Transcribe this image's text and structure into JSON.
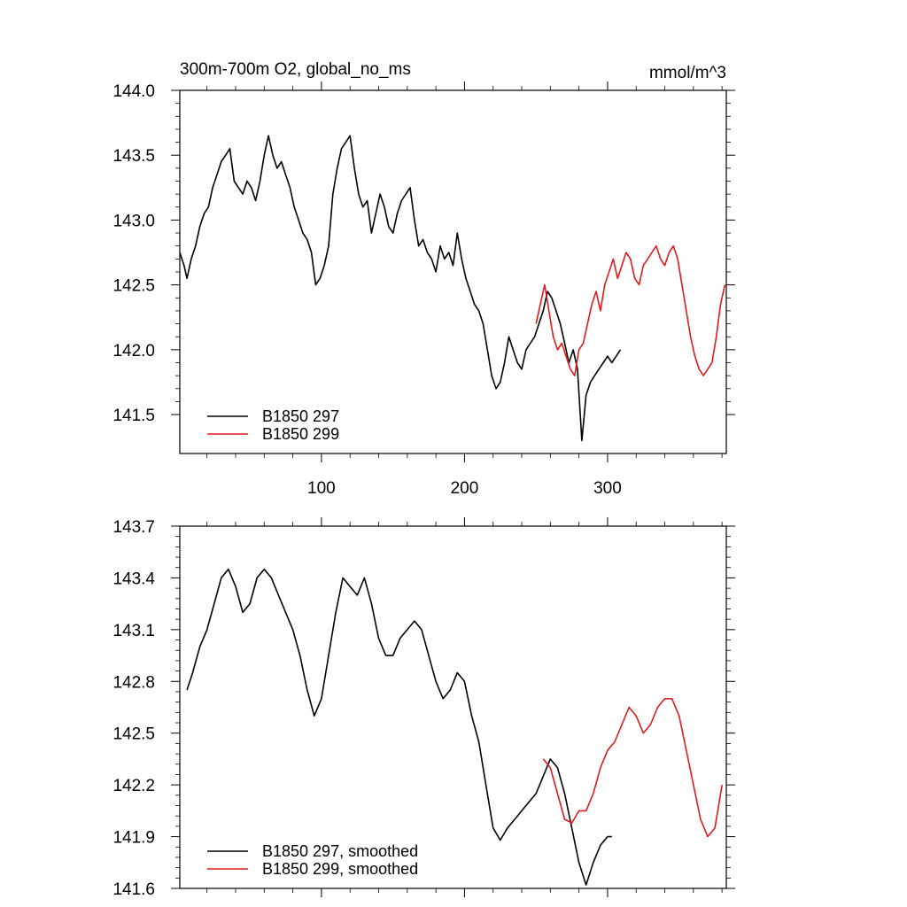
{
  "title_left": "300m-700m O2, global_no_ms",
  "title_right": "mmol/m^3",
  "chart_data": [
    {
      "type": "line",
      "xlim": [
        1,
        383
      ],
      "ylim": [
        141.2,
        144.0
      ],
      "x_ticks": [
        100,
        200,
        300
      ],
      "x_tick_labels": [
        "100",
        "200",
        "300"
      ],
      "y_ticks": [
        141.5,
        142.0,
        142.5,
        143.0,
        143.5,
        144.0
      ],
      "y_tick_labels": [
        "141.5",
        "142.0",
        "142.5",
        "143.0",
        "143.5",
        "144.0"
      ],
      "grid": false,
      "legend_position": "bottom-left",
      "series": [
        {
          "name": "B1850 297",
          "color": "#000000",
          "x": [
            1,
            4,
            6,
            9,
            12,
            15,
            18,
            21,
            24,
            27,
            30,
            33,
            36,
            39,
            42,
            45,
            48,
            51,
            54,
            57,
            60,
            63,
            66,
            69,
            72,
            75,
            78,
            81,
            84,
            87,
            90,
            93,
            96,
            99,
            102,
            105,
            108,
            111,
            114,
            117,
            120,
            123,
            126,
            129,
            132,
            135,
            138,
            141,
            144,
            147,
            150,
            153,
            156,
            159,
            162,
            165,
            168,
            171,
            174,
            177,
            180,
            183,
            186,
            189,
            192,
            195,
            198,
            201,
            204,
            207,
            210,
            213,
            216,
            219,
            222,
            225,
            228,
            231,
            234,
            237,
            240,
            243,
            246,
            249,
            252,
            255,
            258,
            261,
            264,
            267,
            270,
            273,
            276,
            279,
            282,
            285,
            288,
            291,
            294,
            297,
            300,
            303,
            306,
            309
          ],
          "values": [
            142.75,
            142.65,
            142.55,
            142.7,
            142.8,
            142.95,
            143.05,
            143.1,
            143.25,
            143.35,
            143.45,
            143.5,
            143.55,
            143.3,
            143.25,
            143.2,
            143.3,
            143.25,
            143.15,
            143.3,
            143.5,
            143.65,
            143.5,
            143.4,
            143.45,
            143.35,
            143.25,
            143.1,
            143.0,
            142.9,
            142.85,
            142.75,
            142.5,
            142.55,
            142.65,
            142.8,
            143.2,
            143.4,
            143.55,
            143.6,
            143.65,
            143.4,
            143.2,
            143.1,
            143.15,
            142.9,
            143.05,
            143.2,
            143.1,
            142.95,
            142.9,
            143.05,
            143.15,
            143.2,
            143.25,
            143.0,
            142.8,
            142.85,
            142.75,
            142.7,
            142.6,
            142.8,
            142.7,
            142.75,
            142.65,
            142.9,
            142.7,
            142.55,
            142.45,
            142.35,
            142.3,
            142.2,
            142.0,
            141.8,
            141.7,
            141.75,
            141.9,
            142.1,
            142.0,
            141.9,
            141.85,
            142.0,
            142.05,
            142.1,
            142.2,
            142.3,
            142.45,
            142.4,
            142.3,
            142.2,
            142.05,
            141.9,
            142.0,
            141.85,
            141.3,
            141.65,
            141.75,
            141.8,
            141.85,
            141.9,
            141.95,
            141.9,
            141.95,
            142.0
          ]
        },
        {
          "name": "B1850 299",
          "color": "#e31a1c",
          "x": [
            250,
            253,
            256,
            259,
            262,
            265,
            268,
            271,
            274,
            277,
            280,
            283,
            286,
            289,
            292,
            295,
            298,
            301,
            304,
            307,
            310,
            313,
            316,
            319,
            322,
            325,
            328,
            331,
            334,
            337,
            340,
            343,
            346,
            349,
            352,
            355,
            358,
            361,
            364,
            367,
            370,
            373,
            376,
            379,
            382
          ],
          "values": [
            142.2,
            142.35,
            142.5,
            142.3,
            142.1,
            142.0,
            142.05,
            141.95,
            141.85,
            141.8,
            142.0,
            142.05,
            142.2,
            142.35,
            142.45,
            142.3,
            142.5,
            142.6,
            142.7,
            142.55,
            142.65,
            142.75,
            142.7,
            142.55,
            142.5,
            142.65,
            142.7,
            142.75,
            142.8,
            142.7,
            142.65,
            142.75,
            142.8,
            142.7,
            142.5,
            142.3,
            142.1,
            141.95,
            141.85,
            141.8,
            141.85,
            141.9,
            142.1,
            142.35,
            142.5
          ]
        }
      ]
    },
    {
      "type": "line",
      "xlim": [
        1,
        383
      ],
      "ylim": [
        141.6,
        143.7
      ],
      "x_ticks": [
        100,
        200,
        300
      ],
      "x_tick_labels": [
        "",
        "",
        ""
      ],
      "y_ticks": [
        141.6,
        141.9,
        142.2,
        142.5,
        142.8,
        143.1,
        143.4,
        143.7
      ],
      "y_tick_labels": [
        "141.6",
        "141.9",
        "142.2",
        "142.5",
        "142.8",
        "143.1",
        "143.4",
        "143.7"
      ],
      "grid": false,
      "legend_position": "bottom-left",
      "series": [
        {
          "name": "B1850 297, smoothed",
          "color": "#000000",
          "x": [
            6,
            10,
            15,
            20,
            25,
            30,
            35,
            40,
            45,
            50,
            55,
            60,
            65,
            70,
            75,
            80,
            85,
            90,
            95,
            100,
            105,
            110,
            115,
            120,
            125,
            130,
            135,
            140,
            145,
            150,
            155,
            160,
            165,
            170,
            175,
            180,
            185,
            190,
            195,
            200,
            205,
            210,
            215,
            220,
            225,
            230,
            235,
            240,
            245,
            250,
            255,
            260,
            265,
            270,
            275,
            280,
            285,
            290,
            295,
            300,
            303
          ],
          "values": [
            142.75,
            142.85,
            143.0,
            143.1,
            143.25,
            143.4,
            143.45,
            143.35,
            143.2,
            143.25,
            143.4,
            143.45,
            143.4,
            143.3,
            143.2,
            143.1,
            142.95,
            142.75,
            142.6,
            142.7,
            142.95,
            143.2,
            143.4,
            143.35,
            143.3,
            143.4,
            143.25,
            143.05,
            142.95,
            142.95,
            143.05,
            143.1,
            143.15,
            143.1,
            142.95,
            142.8,
            142.7,
            142.75,
            142.85,
            142.8,
            142.6,
            142.45,
            142.2,
            141.95,
            141.88,
            141.95,
            142.0,
            142.05,
            142.1,
            142.15,
            142.25,
            142.35,
            142.3,
            142.15,
            141.95,
            141.75,
            141.62,
            141.75,
            141.85,
            141.9,
            141.9
          ]
        },
        {
          "name": "B1850 299, smoothed",
          "color": "#e31a1c",
          "x": [
            255,
            260,
            265,
            270,
            275,
            280,
            285,
            290,
            295,
            300,
            305,
            310,
            315,
            320,
            325,
            330,
            335,
            340,
            345,
            350,
            355,
            360,
            365,
            370,
            375,
            380
          ],
          "values": [
            142.35,
            142.3,
            142.15,
            142.0,
            141.98,
            142.05,
            142.05,
            142.15,
            142.3,
            142.4,
            142.45,
            142.55,
            142.65,
            142.6,
            142.5,
            142.55,
            142.65,
            142.7,
            142.7,
            142.6,
            142.4,
            142.2,
            142.0,
            141.9,
            141.95,
            142.2
          ]
        }
      ]
    }
  ]
}
